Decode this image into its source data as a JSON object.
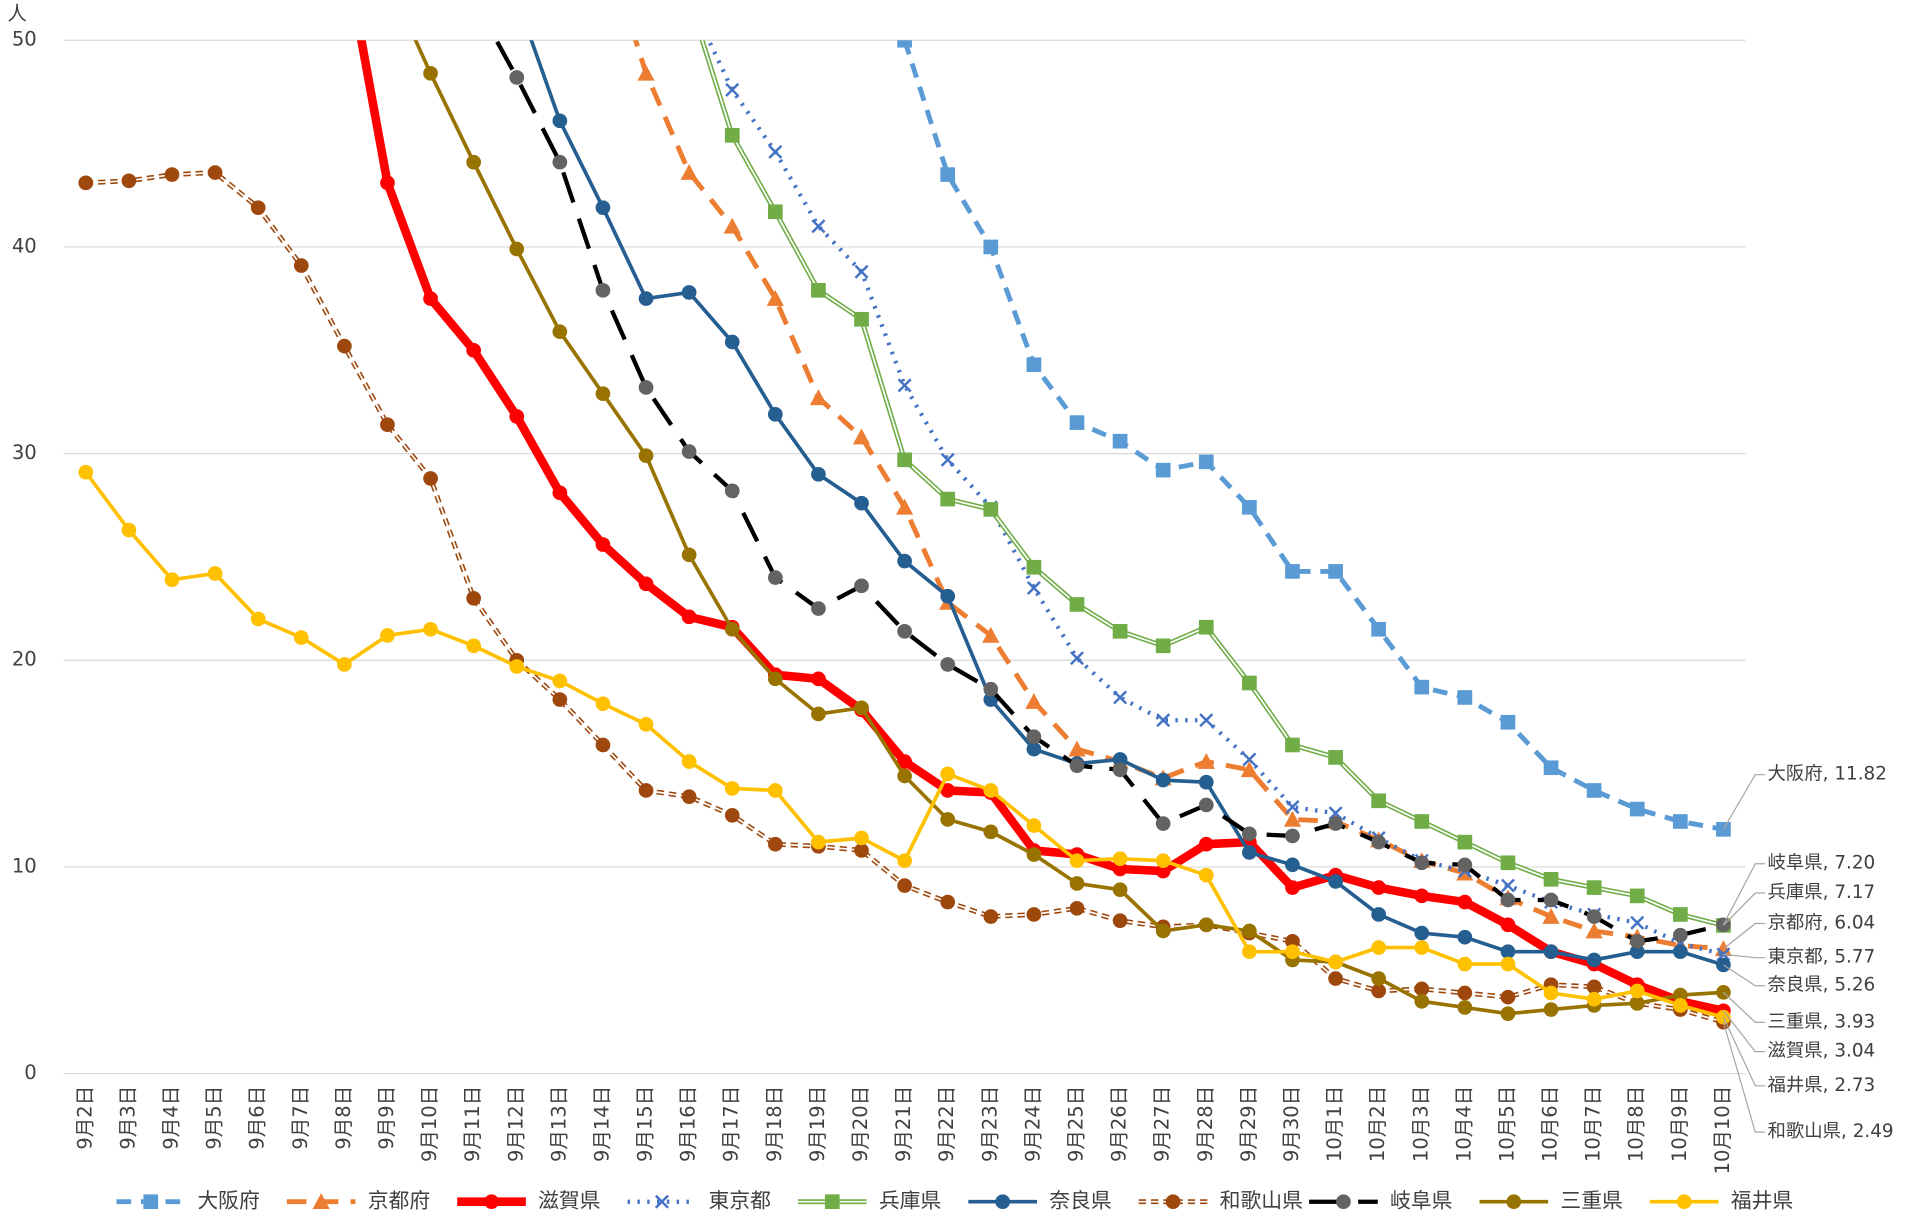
{
  "chart_data": {
    "type": "line",
    "y_label": "人",
    "categories": [
      "9月2日",
      "9月3日",
      "9月4日",
      "9月5日",
      "9月6日",
      "9月7日",
      "9月8日",
      "9月9日",
      "9月10日",
      "9月11日",
      "9月12日",
      "9月13日",
      "9月14日",
      "9月15日",
      "9月16日",
      "9月17日",
      "9月18日",
      "9月19日",
      "9月20日",
      "9月21日",
      "9月22日",
      "9月23日",
      "9月24日",
      "9月25日",
      "9月26日",
      "9月27日",
      "9月28日",
      "9月29日",
      "9月30日",
      "10月1日",
      "10月2日",
      "10月3日",
      "10月4日",
      "10月5日",
      "10月6日",
      "10月7日",
      "10月8日",
      "10月9日",
      "10月10日"
    ],
    "ylim": [
      0,
      50
    ],
    "yticks": [
      0,
      10,
      20,
      30,
      40,
      50
    ],
    "grid": true,
    "series": [
      {
        "name": "大阪府",
        "color": "#5b9bd5",
        "marker": "square",
        "dash": "12 8",
        "width": 4,
        "end_label": "大阪府, 11.82",
        "values": [
          null,
          null,
          null,
          null,
          null,
          null,
          null,
          null,
          null,
          null,
          null,
          null,
          null,
          null,
          null,
          null,
          null,
          null,
          null,
          50,
          43.5,
          40,
          34.3,
          31.5,
          30.6,
          29.2,
          29.6,
          27.4,
          24.3,
          24.3,
          21.5,
          18.7,
          18.2,
          17,
          14.8,
          13.7,
          12.8,
          12.2,
          11.82
        ]
      },
      {
        "name": "京都府",
        "color": "#ed7d31",
        "marker": "triangle",
        "dash": "16 10",
        "width": 4,
        "end_label": "京都府, 6.04",
        "values": [
          null,
          null,
          null,
          null,
          null,
          null,
          null,
          null,
          null,
          null,
          null,
          null,
          55,
          48.4,
          43.6,
          41,
          37.5,
          32.7,
          30.8,
          27.4,
          22.8,
          21.2,
          18,
          15.7,
          15.1,
          14.3,
          15.1,
          14.7,
          12.3,
          12.2,
          11.3,
          10.3,
          9.7,
          8.5,
          7.6,
          6.9,
          6.6,
          6.2,
          6.04
        ]
      },
      {
        "name": "滋賀県",
        "color": "#ff0000",
        "marker": "circle",
        "dash": "",
        "width": 7,
        "end_label": "滋賀県, 3.04",
        "values": [
          null,
          null,
          null,
          null,
          null,
          null,
          54.5,
          43.1,
          37.5,
          35,
          31.8,
          28.1,
          25.6,
          23.7,
          22.1,
          21.6,
          19.3,
          19.1,
          17.6,
          15.1,
          13.7,
          13.6,
          10.8,
          10.6,
          9.9,
          9.8,
          11.1,
          11.2,
          9,
          9.6,
          9,
          8.6,
          8.3,
          7.2,
          5.9,
          5.3,
          4.3,
          3.5,
          3.04
        ]
      },
      {
        "name": "東京都",
        "color": "#4472c4",
        "marker": "x",
        "dash": "2 6",
        "width": 3.5,
        "end_label": "東京都, 5.77",
        "values": [
          null,
          null,
          null,
          null,
          null,
          null,
          null,
          null,
          null,
          null,
          null,
          null,
          null,
          null,
          52,
          47.6,
          44.6,
          41,
          38.8,
          33.3,
          29.7,
          27.4,
          23.5,
          20.1,
          18.2,
          17.1,
          17.1,
          15.2,
          12.9,
          12.6,
          11.4,
          10.3,
          9.8,
          9.1,
          8.3,
          7.7,
          7.3,
          6.3,
          5.77
        ]
      },
      {
        "name": "兵庫県",
        "color": "#70ad47",
        "marker": "square",
        "dash": "",
        "width": 4,
        "double": true,
        "end_label": "兵庫県, 7.17",
        "values": [
          null,
          null,
          null,
          null,
          null,
          null,
          null,
          null,
          null,
          null,
          null,
          null,
          null,
          null,
          52,
          45.4,
          41.7,
          37.9,
          36.5,
          29.7,
          27.8,
          27.3,
          24.5,
          22.7,
          21.4,
          20.7,
          21.6,
          18.9,
          15.9,
          15.3,
          13.2,
          12.2,
          11.2,
          10.2,
          9.4,
          9,
          8.6,
          7.7,
          7.17
        ]
      },
      {
        "name": "奈良県",
        "color": "#255e91",
        "marker": "circle",
        "dash": "",
        "width": 3,
        "end_label": "奈良県, 5.26",
        "values": [
          null,
          null,
          null,
          null,
          null,
          null,
          null,
          null,
          null,
          null,
          52,
          46.1,
          41.9,
          37.5,
          37.8,
          35.4,
          31.9,
          29,
          27.6,
          24.8,
          23.1,
          18.1,
          15.7,
          15,
          15.2,
          14.2,
          14.1,
          10.7,
          10.1,
          9.3,
          7.7,
          6.8,
          6.6,
          5.9,
          5.9,
          5.5,
          5.9,
          5.9,
          5.26
        ]
      },
      {
        "name": "和歌山県",
        "color": "#9e480e",
        "marker": "circle",
        "dash": "6 4",
        "width": 4,
        "double": true,
        "end_label": "和歌山県, 2.49",
        "values": [
          43.1,
          43.2,
          43.5,
          43.6,
          41.9,
          39.1,
          35.2,
          31.4,
          28.8,
          23,
          20,
          18.1,
          15.9,
          13.7,
          13.4,
          12.5,
          11.1,
          11,
          10.8,
          9.1,
          8.3,
          7.6,
          7.7,
          8,
          7.4,
          7.1,
          7.2,
          6.8,
          6.4,
          4.6,
          4,
          4.1,
          3.9,
          3.7,
          4.3,
          4.2,
          3.4,
          3.1,
          2.49
        ]
      },
      {
        "name": "岐阜県",
        "color": "#000000",
        "marker": "circle",
        "marker_color": "#636363",
        "dash": "26 14",
        "width": 3.5,
        "end_label": "岐阜県, 7.20",
        "values": [
          null,
          null,
          null,
          null,
          null,
          null,
          null,
          null,
          null,
          52,
          48.2,
          44.1,
          37.9,
          33.2,
          30.1,
          28.2,
          24,
          22.5,
          23.6,
          21.4,
          19.8,
          18.6,
          16.3,
          14.9,
          14.7,
          12.1,
          13,
          11.6,
          11.5,
          12.1,
          11.2,
          10.2,
          10.1,
          8.4,
          8.4,
          7.6,
          6.4,
          6.7,
          7.2
        ]
      },
      {
        "name": "三重県",
        "color": "#997300",
        "marker": "circle",
        "dash": "",
        "width": 3,
        "end_label": "三重県, 3.93",
        "values": [
          null,
          null,
          null,
          null,
          null,
          null,
          null,
          53,
          48.4,
          44.1,
          39.9,
          35.9,
          32.9,
          29.9,
          25.1,
          21.5,
          19.1,
          17.4,
          17.7,
          14.4,
          12.3,
          11.7,
          10.6,
          9.2,
          8.9,
          6.9,
          7.2,
          6.9,
          5.5,
          5.4,
          4.6,
          3.5,
          3.2,
          2.9,
          3.1,
          3.3,
          3.4,
          3.8,
          3.93
        ]
      },
      {
        "name": "福井県",
        "color": "#ffc000",
        "marker": "circle",
        "dash": "",
        "width": 3,
        "end_label": "福井県, 2.73",
        "values": [
          29.1,
          26.3,
          23.9,
          24.2,
          22,
          21.1,
          19.8,
          21.2,
          21.5,
          20.7,
          19.7,
          19,
          17.9,
          16.9,
          15.1,
          13.8,
          13.7,
          11.2,
          11.4,
          10.3,
          14.5,
          13.7,
          12,
          10.3,
          10.4,
          10.3,
          9.6,
          5.9,
          5.9,
          5.4,
          6.1,
          6.1,
          5.3,
          5.3,
          3.9,
          3.6,
          4,
          3.3,
          2.73
        ]
      }
    ]
  }
}
